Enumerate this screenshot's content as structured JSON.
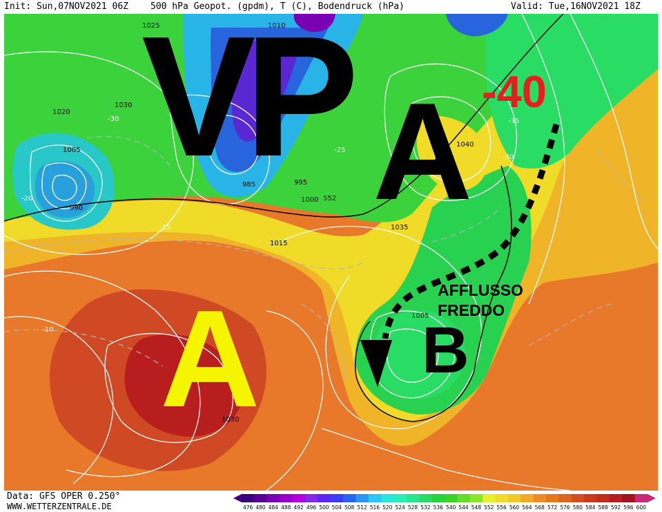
{
  "header": {
    "init": "Init: Sun,07NOV2021 06Z",
    "title": "500 hPa Geopot. (gpdm), T (C), Bodendruck (hPa)",
    "valid": "Valid: Tue,16NOV2021 18Z"
  },
  "footer": {
    "source": "Data: GFS OPER 0.250°",
    "site": "WWW.WETTERZENTRALE.DE"
  },
  "scale": {
    "values": [
      "476",
      "480",
      "484",
      "488",
      "492",
      "496",
      "500",
      "504",
      "508",
      "512",
      "516",
      "520",
      "524",
      "528",
      "532",
      "536",
      "540",
      "544",
      "548",
      "552",
      "556",
      "560",
      "564",
      "568",
      "572",
      "576",
      "580",
      "584",
      "588",
      "592",
      "596",
      "600"
    ],
    "colors": [
      "#3c0078",
      "#5a0096",
      "#7a00b4",
      "#9a00c8",
      "#b400dc",
      "#8228e6",
      "#5a28f0",
      "#3c3cf0",
      "#2864f0",
      "#2896f0",
      "#28c8f0",
      "#28e6dc",
      "#28f0b4",
      "#28e68c",
      "#28dc64",
      "#28d23c",
      "#3cd228",
      "#64dc28",
      "#8ce628",
      "#e6f028",
      "#f0dc28",
      "#f0c828",
      "#f0aa28",
      "#f08c28",
      "#e6781e",
      "#dc641e",
      "#d2501e",
      "#c83c1e",
      "#be2d1e",
      "#b41e1e",
      "#a0141e",
      "#c82878"
    ]
  },
  "annotations": {
    "vp": "VP",
    "high_north": "A",
    "high_south": "A",
    "low": "B",
    "temp": "-40",
    "cold_flow": "AFFLUSSO\nFREDDO"
  },
  "colors": {
    "annotation_black": "#000000",
    "annotation_yellow": "#f5f500",
    "annotation_red": "#e61e1e",
    "ocean_warm": "#e0642a",
    "core_warm": "#b81e1e",
    "mid_band": "#f0b428",
    "cold_green": "#28d250",
    "trough_blue": "#2864dc",
    "trough_purple": "#5a28d2"
  },
  "pressure_labels": [
    "1025",
    "1010",
    "1005",
    "1020",
    "1035",
    "1030",
    "1015",
    "1000",
    "995",
    "990",
    "985",
    "1040",
    "1005",
    "1030"
  ],
  "temperature_labels": [
    "-30",
    "-25",
    "-20",
    "-15",
    "-10",
    "-35",
    "-30"
  ],
  "geopotential_label": "552"
}
